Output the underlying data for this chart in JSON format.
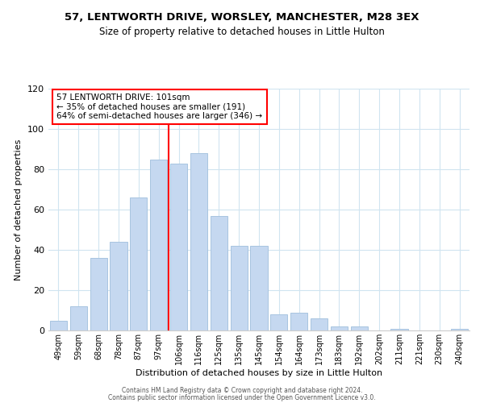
{
  "title": "57, LENTWORTH DRIVE, WORSLEY, MANCHESTER, M28 3EX",
  "subtitle": "Size of property relative to detached houses in Little Hulton",
  "xlabel": "Distribution of detached houses by size in Little Hulton",
  "ylabel": "Number of detached properties",
  "bar_labels": [
    "49sqm",
    "59sqm",
    "68sqm",
    "78sqm",
    "87sqm",
    "97sqm",
    "106sqm",
    "116sqm",
    "125sqm",
    "135sqm",
    "145sqm",
    "154sqm",
    "164sqm",
    "173sqm",
    "183sqm",
    "192sqm",
    "202sqm",
    "211sqm",
    "221sqm",
    "230sqm",
    "240sqm"
  ],
  "bar_values": [
    5,
    12,
    36,
    44,
    66,
    85,
    83,
    88,
    57,
    42,
    42,
    8,
    9,
    6,
    2,
    2,
    0,
    1,
    0,
    0,
    1
  ],
  "bar_color": "#c5d8f0",
  "bar_edge_color": "#a8c4e0",
  "vline_x": 5.5,
  "vline_color": "red",
  "annotation_title": "57 LENTWORTH DRIVE: 101sqm",
  "annotation_line1": "← 35% of detached houses are smaller (191)",
  "annotation_line2": "64% of semi-detached houses are larger (346) →",
  "annotation_box_color": "white",
  "annotation_box_edge": "red",
  "ylim": [
    0,
    120
  ],
  "yticks": [
    0,
    20,
    40,
    60,
    80,
    100,
    120
  ],
  "footer1": "Contains HM Land Registry data © Crown copyright and database right 2024.",
  "footer2": "Contains public sector information licensed under the Open Government Licence v3.0.",
  "grid_color": "#d0e4f0",
  "title_fontsize": 9.5,
  "subtitle_fontsize": 8.5,
  "tick_fontsize": 7,
  "axis_label_fontsize": 8,
  "footer_fontsize": 5.5
}
